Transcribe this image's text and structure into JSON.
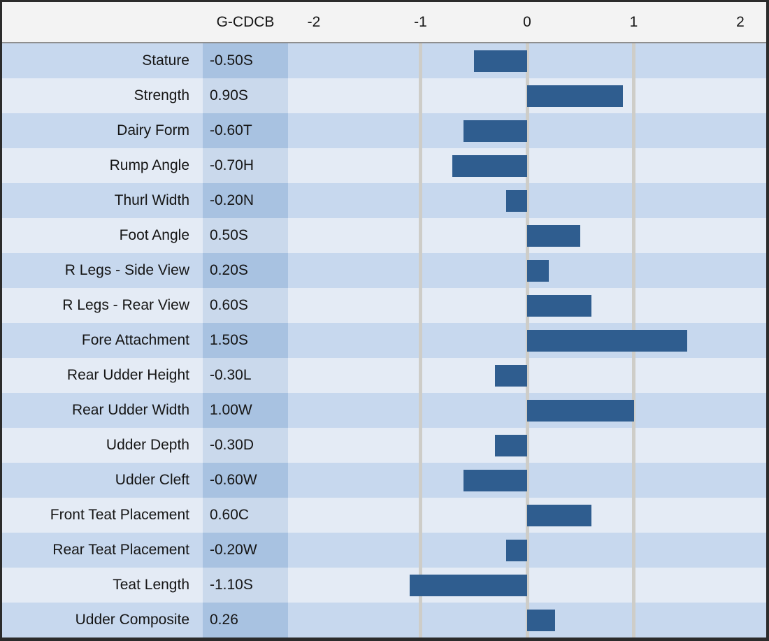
{
  "chart_data": {
    "type": "bar",
    "orientation": "horizontal",
    "title": "",
    "value_column_header": "G-CDCB",
    "categories": [
      "Stature",
      "Strength",
      "Dairy Form",
      "Rump Angle",
      "Thurl Width",
      "Foot Angle",
      "R Legs - Side View",
      "R Legs - Rear View",
      "Fore Attachment",
      "Rear Udder Height",
      "Rear Udder Width",
      "Udder Depth",
      "Udder Cleft",
      "Front Teat Placement",
      "Rear Teat Placement",
      "Teat Length",
      "Udder Composite"
    ],
    "value_labels": [
      "-0.50S",
      "0.90S",
      "-0.60T",
      "-0.70H",
      "-0.20N",
      "0.50S",
      "0.20S",
      "0.60S",
      "1.50S",
      "-0.30L",
      "1.00W",
      "-0.30D",
      "-0.60W",
      "0.60C",
      "-0.20W",
      "-1.10S",
      "0.26"
    ],
    "values": [
      -0.5,
      0.9,
      -0.6,
      -0.7,
      -0.2,
      0.5,
      0.2,
      0.6,
      1.5,
      -0.3,
      1.0,
      -0.3,
      -0.6,
      0.6,
      -0.2,
      -1.1,
      0.26
    ],
    "x_tick_labels": [
      "-2",
      "-1",
      "0",
      "1",
      "2"
    ],
    "x_tick_values": [
      -2,
      -1,
      0,
      1,
      2
    ],
    "xlim": [
      -2.243,
      2.248
    ],
    "gridlines_at": [
      -1,
      0,
      1
    ],
    "grid": true,
    "legend": false
  },
  "colors": {
    "bar": "#2f5d8f",
    "row_band_dark": "#c7d8ee",
    "row_band_light": "#e4ebf5",
    "value_cell_dark": "#a8c2e1",
    "value_cell_light": "#cad9ec",
    "header_background": "#f3f3f3",
    "gridline": "#cecdc8",
    "frame_border": "#2b2b2b",
    "text": "#151515"
  }
}
